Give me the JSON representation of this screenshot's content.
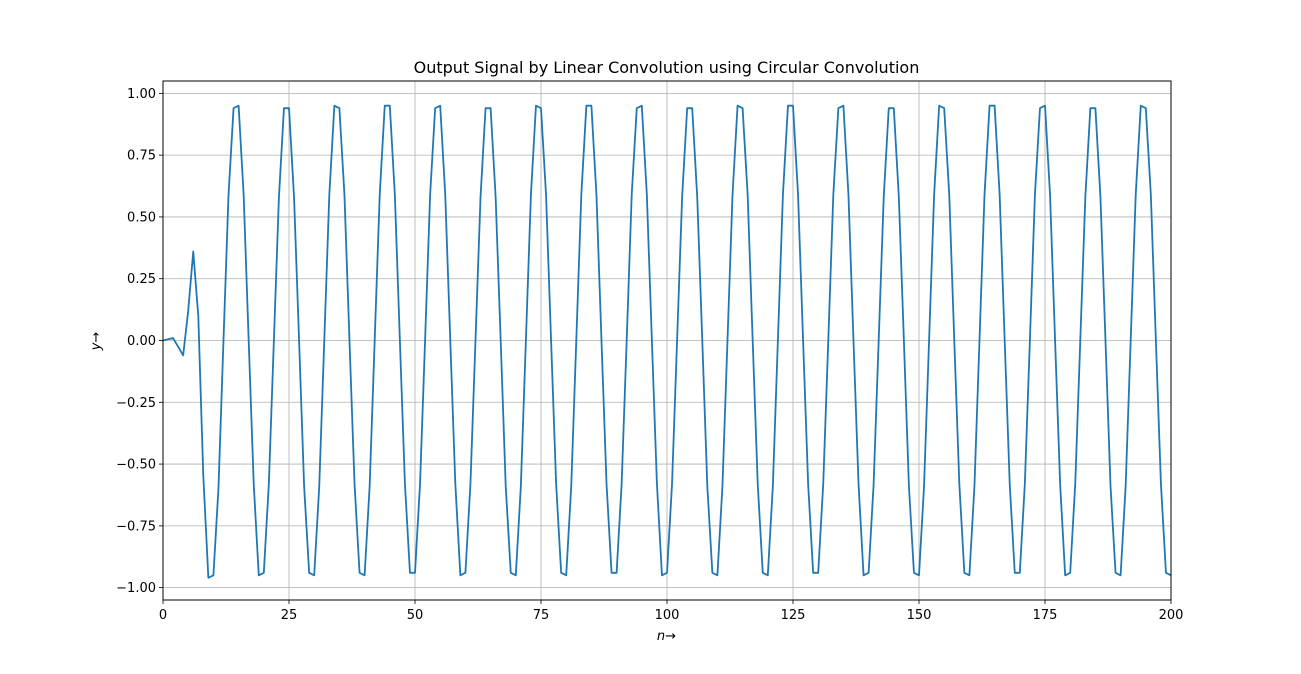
{
  "chart_data": {
    "type": "line",
    "title": "Output Signal by Linear Convolution using Circular Convolution",
    "xlabel": "n→",
    "ylabel": "y→",
    "xlim": [
      0,
      200
    ],
    "ylim": [
      -1.05,
      1.05
    ],
    "xticks": [
      0,
      25,
      50,
      75,
      100,
      125,
      150,
      175,
      200
    ],
    "yticks": [
      -1.0,
      -0.75,
      -0.5,
      -0.25,
      0.0,
      0.25,
      0.5,
      0.75,
      1.0
    ],
    "xtick_labels": [
      "0",
      "25",
      "50",
      "75",
      "100",
      "125",
      "150",
      "175",
      "200"
    ],
    "ytick_labels": [
      "−1.00",
      "−0.75",
      "−0.50",
      "−0.25",
      "0.00",
      "0.25",
      "0.50",
      "0.75",
      "1.00"
    ],
    "grid": true,
    "color": "#1f77b4",
    "series": [
      {
        "x": [
          0,
          2,
          4,
          5,
          6,
          7,
          8,
          9,
          10,
          11,
          12,
          13,
          14,
          15,
          16,
          17,
          18,
          19,
          20,
          21,
          22,
          23,
          24,
          25,
          26,
          27,
          28,
          29,
          30,
          31,
          32,
          33,
          34,
          35,
          36,
          37,
          38,
          39,
          40,
          41,
          42,
          43,
          44,
          45,
          46,
          47,
          48,
          49,
          50,
          51,
          52,
          53,
          54,
          55,
          56,
          57,
          58,
          59,
          60,
          61,
          62,
          63,
          64,
          65,
          66,
          67,
          68,
          69,
          70,
          71,
          72,
          73,
          74,
          75,
          76,
          77,
          78,
          79,
          80,
          81,
          82,
          83,
          84,
          85,
          86,
          87,
          88,
          89,
          90,
          91,
          92,
          93,
          94,
          95,
          96,
          97,
          98,
          99,
          100,
          101,
          102,
          103,
          104,
          105,
          106,
          107,
          108,
          109,
          110,
          111,
          112,
          113,
          114,
          115,
          116,
          117,
          118,
          119,
          120,
          121,
          122,
          123,
          124,
          125,
          126,
          127,
          128,
          129,
          130,
          131,
          132,
          133,
          134,
          135,
          136,
          137,
          138,
          139,
          140,
          141,
          142,
          143,
          144,
          145,
          146,
          147,
          148,
          149,
          150,
          151,
          152,
          153,
          154,
          155,
          156,
          157,
          158,
          159,
          160,
          161,
          162,
          163,
          164,
          165,
          166,
          167,
          168,
          169,
          170,
          171,
          172,
          173,
          174,
          175,
          176,
          177,
          178,
          179,
          180,
          181,
          182,
          183,
          184,
          185,
          186,
          187,
          188,
          189,
          190,
          191,
          192,
          193,
          194,
          195,
          196,
          197,
          198,
          199,
          200
        ],
        "y": [
          0,
          0.01,
          -0.06,
          0.12,
          0.36,
          0.1,
          -0.55,
          -0.96,
          -0.95,
          -0.6,
          0,
          0.59,
          0.94,
          0.95,
          0.59,
          0,
          -0.58,
          -0.95,
          -0.94,
          -0.58,
          0,
          0.58,
          0.94,
          0.94,
          0.58,
          0,
          -0.59,
          -0.94,
          -0.95,
          -0.59,
          0,
          0.59,
          0.95,
          0.94,
          0.59,
          0,
          -0.58,
          -0.94,
          -0.95,
          -0.59,
          0,
          0.59,
          0.95,
          0.95,
          0.59,
          0,
          -0.58,
          -0.94,
          -0.94,
          -0.58,
          0,
          0.59,
          0.94,
          0.95,
          0.59,
          0,
          -0.58,
          -0.95,
          -0.94,
          -0.58,
          0,
          0.58,
          0.94,
          0.94,
          0.58,
          0,
          -0.59,
          -0.94,
          -0.95,
          -0.59,
          0,
          0.59,
          0.95,
          0.94,
          0.59,
          0,
          -0.58,
          -0.94,
          -0.95,
          -0.59,
          0,
          0.59,
          0.95,
          0.95,
          0.59,
          0,
          -0.58,
          -0.94,
          -0.94,
          -0.58,
          0,
          0.59,
          0.94,
          0.95,
          0.59,
          0,
          -0.58,
          -0.95,
          -0.94,
          -0.58,
          0,
          0.58,
          0.94,
          0.94,
          0.58,
          0,
          -0.59,
          -0.94,
          -0.95,
          -0.59,
          0,
          0.59,
          0.95,
          0.94,
          0.59,
          0,
          -0.58,
          -0.94,
          -0.95,
          -0.59,
          0,
          0.59,
          0.95,
          0.95,
          0.59,
          0,
          -0.58,
          -0.94,
          -0.94,
          -0.58,
          0,
          0.59,
          0.94,
          0.95,
          0.59,
          0,
          -0.58,
          -0.95,
          -0.94,
          -0.58,
          0,
          0.58,
          0.94,
          0.94,
          0.58,
          0,
          -0.59,
          -0.94,
          -0.95,
          -0.59,
          0,
          0.59,
          0.95,
          0.94,
          0.59,
          0,
          -0.58,
          -0.94,
          -0.95,
          -0.59,
          0,
          0.59,
          0.95,
          0.95,
          0.59,
          0,
          -0.58,
          -0.94,
          -0.94,
          -0.58,
          0,
          0.59,
          0.94,
          0.95,
          0.59,
          0,
          -0.58,
          -0.95,
          -0.94,
          -0.58,
          0,
          0.58,
          0.94,
          0.94,
          0.58,
          0,
          -0.59,
          -0.94,
          -0.95,
          -0.59,
          0,
          0.59,
          0.95,
          0.94,
          0.59,
          0,
          -0.58,
          -0.94,
          -0.95
        ]
      }
    ]
  }
}
